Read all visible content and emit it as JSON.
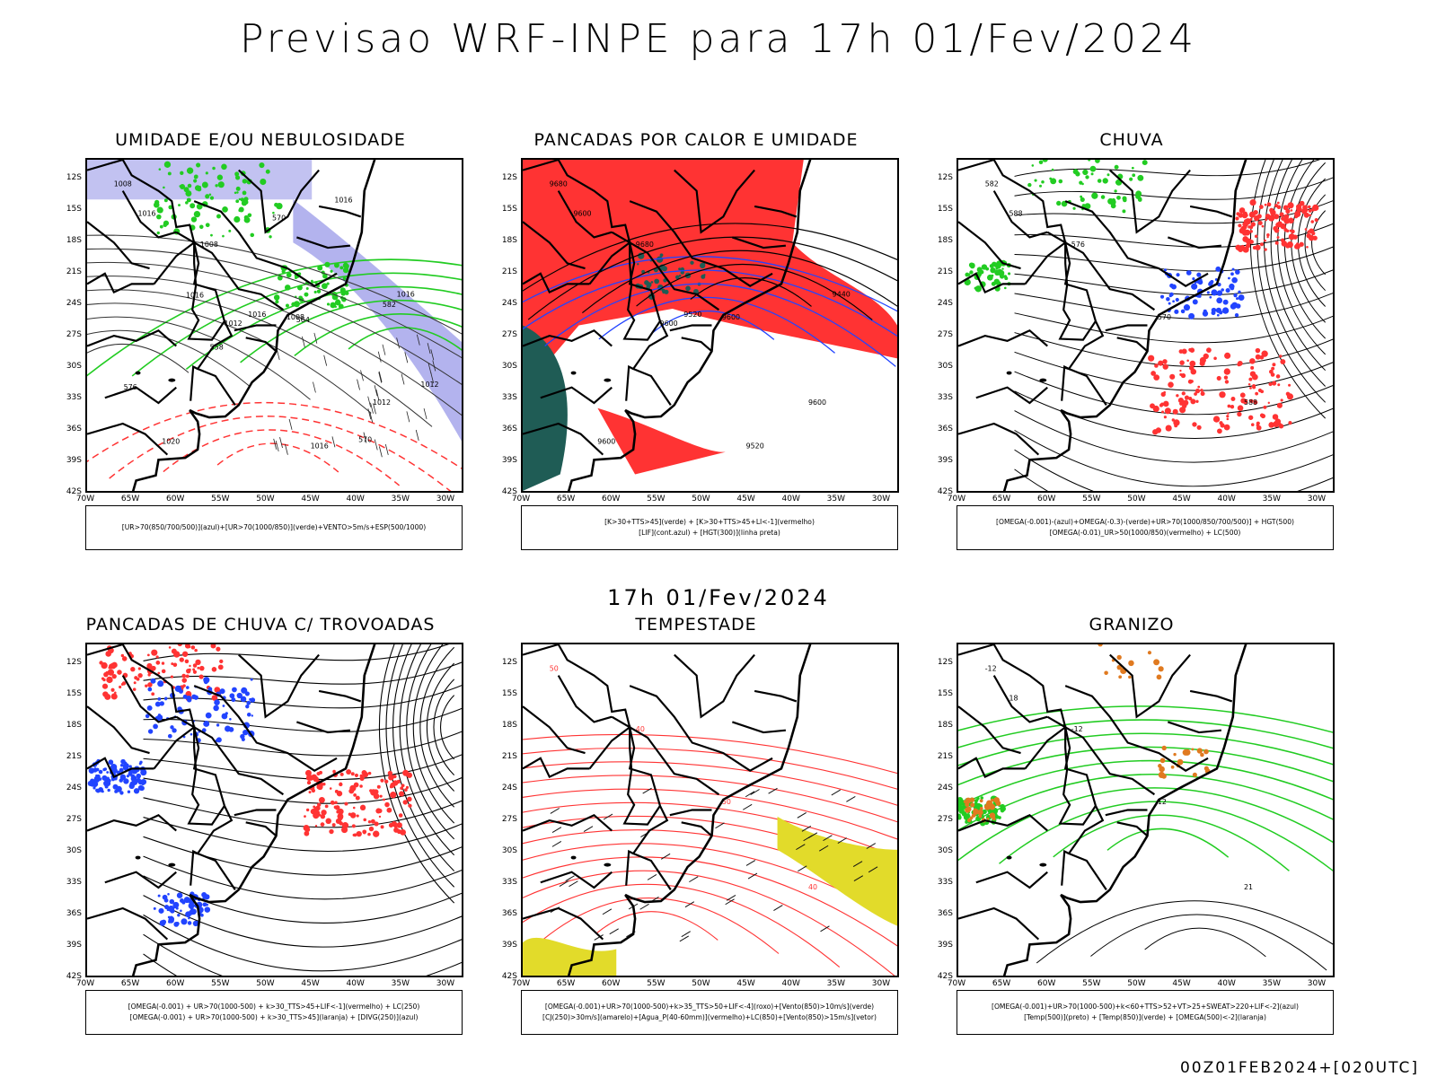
{
  "title": "Previsao WRF-INPE  para 17h 01/Fev/2024",
  "mid_title": "17h 01/Fev/2024",
  "footer": "00Z01FEB2024+[020UTC]",
  "lat_labels": [
    "12S",
    "15S",
    "18S",
    "21S",
    "24S",
    "27S",
    "30S",
    "33S",
    "36S",
    "39S",
    "42S"
  ],
  "lon_labels": [
    "70W",
    "65W",
    "60W",
    "55W",
    "50W",
    "45W",
    "40W",
    "35W",
    "30W"
  ],
  "panels": [
    {
      "title": "UMIDADE E/OU NEBULOSIDADE",
      "legend": [
        "[UR>70(850/700/500)](azul)+[UR>70(1000/850)](verde)+VENTO>5m/s+ESP(500/1000)"
      ],
      "labels": [
        "1008",
        "1008",
        "1008",
        "1012",
        "1016",
        "1012",
        "1016",
        "1016",
        "1020",
        "1016",
        "1016",
        "1012",
        "1016",
        "570",
        "570",
        "576",
        "558",
        "564",
        "582"
      ]
    },
    {
      "title": "PANCADAS POR CALOR E UMIDADE",
      "legend": [
        "[K>30+TTS>45](verde) + [K>30+TTS>45+LI<-1](vermelho)",
        "[LIF](cont.azul) + [HGT(300)](linha preta)"
      ],
      "labels": [
        "9680",
        "9680",
        "9600",
        "9600",
        "9600",
        "9600",
        "9520",
        "9440",
        "9600",
        "9520"
      ]
    },
    {
      "title": "CHUVA",
      "legend": [
        "[OMEGA(-0.001)-(azul)+OMEGA(-0.3)-(verde)+UR>70(1000/850/700/500)] + HGT(500)",
        "[OMEGA(-0.01)_UR>50(1000/850)(vermelho) + LC(500)"
      ],
      "labels": [
        "582",
        "576",
        "570",
        "588",
        "588"
      ]
    },
    {
      "title": "PANCADAS DE CHUVA C/ TROVOADAS",
      "legend": [
        "[OMEGA(-0.001) + UR>70(1000-500) + k>30_TTS>45+LIF<-1](vermelho) + LC(250)",
        "[OMEGA(-0.001) + UR>70(1000-500) + k>30_TTS>45](laranja) + [DIVG(250)](azul)"
      ],
      "labels": []
    },
    {
      "title": "TEMPESTADE",
      "legend": [
        "[OMEGA(-0.001)+UR>70(1000-500)+k>35_TTS>50+LIF<-4](roxo)+[Vento(850)>10m/s](verde)",
        "[CJ(250)>30m/s](amarelo)+[Agua_P(40-60mm)](vermelho)+LC(850)+[Vento(850)>15m/s](vetor)"
      ],
      "labels": [
        "50",
        "40",
        "50",
        "40"
      ]
    },
    {
      "title": "GRANIZO",
      "legend": [
        "[OMEGA(-0.001)+UR>70(1000-500)+k<60+TTS>52+VT>25+SWEAT>220+LIF<-2](azul)",
        "[Temp(500)](preto) + [Temp(850)](verde) + [OMEGA(500)<-2](laranja)"
      ],
      "labels": [
        "-12",
        "-12",
        "12",
        "21",
        "18"
      ]
    }
  ],
  "colors": {
    "blue": "#2244ff",
    "green": "#22cc22",
    "red": "#ff3333",
    "lavender": "#b3b3ee",
    "darkgreen": "#1f5c55",
    "yellow": "#e2db2a",
    "orange": "#e07a20",
    "black": "#000000"
  }
}
